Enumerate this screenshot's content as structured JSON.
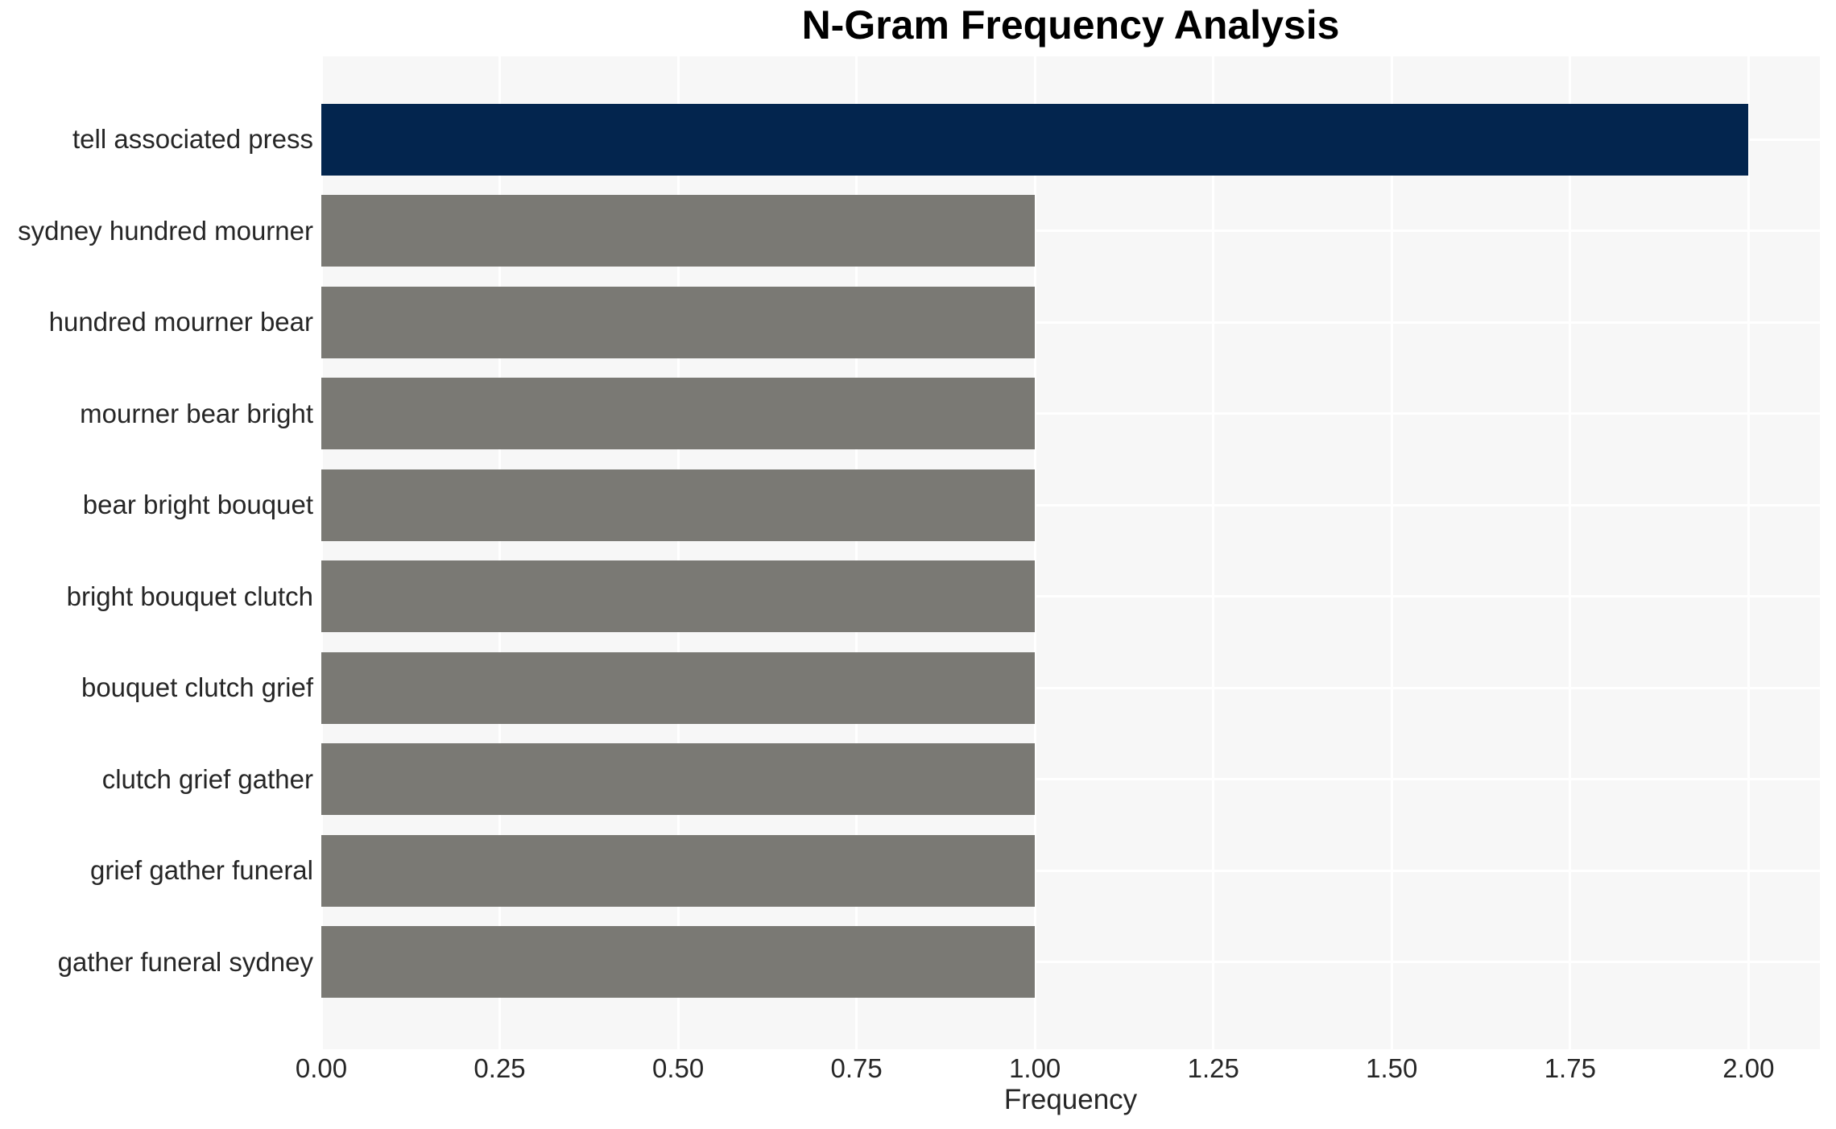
{
  "chart_data": {
    "type": "bar",
    "orientation": "horizontal",
    "title": "N-Gram Frequency Analysis",
    "xlabel": "Frequency",
    "ylabel": "",
    "categories": [
      "tell associated press",
      "sydney hundred mourner",
      "hundred mourner bear",
      "mourner bear bright",
      "bear bright bouquet",
      "bright bouquet clutch",
      "bouquet clutch grief",
      "clutch grief gather",
      "grief gather funeral",
      "gather funeral sydney"
    ],
    "values": [
      2,
      1,
      1,
      1,
      1,
      1,
      1,
      1,
      1,
      1
    ],
    "bar_colors": [
      "#03254e",
      "#7a7974",
      "#7a7974",
      "#7a7974",
      "#7a7974",
      "#7a7974",
      "#7a7974",
      "#7a7974",
      "#7a7974",
      "#7a7974"
    ],
    "xlim": [
      0,
      2.1
    ],
    "xtick_labels": [
      "0.00",
      "0.25",
      "0.50",
      "0.75",
      "1.00",
      "1.25",
      "1.50",
      "1.75",
      "2.00"
    ],
    "xtick_values": [
      0,
      0.25,
      0.5,
      0.75,
      1.0,
      1.25,
      1.5,
      1.75,
      2.0
    ],
    "grid": true,
    "legend_position": "none",
    "colors": {
      "highlight_bar": "#03254e",
      "default_bar": "#7a7974",
      "plot_background": "#f7f7f7",
      "gridline": "#ffffff",
      "text": "#262626",
      "title_text": "#000000"
    }
  }
}
